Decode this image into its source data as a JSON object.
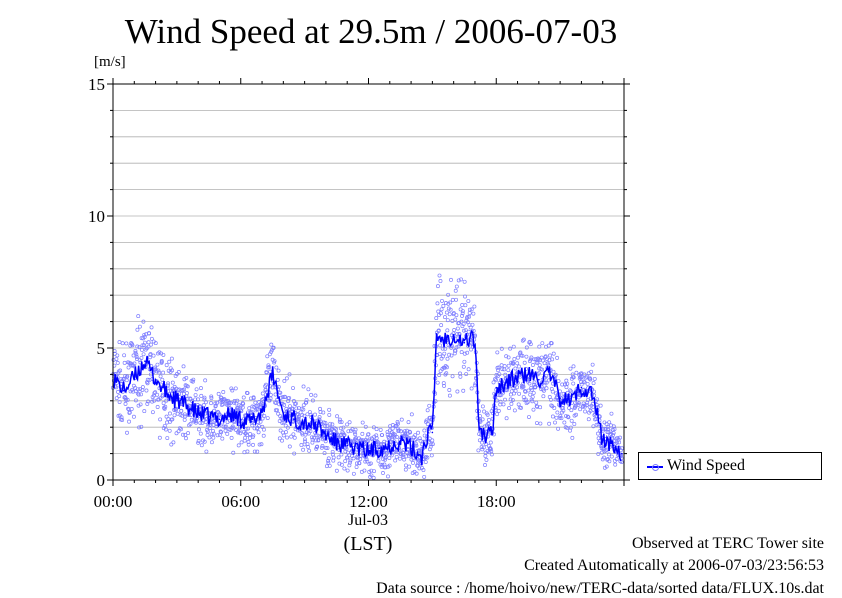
{
  "chart_data": {
    "type": "line",
    "title": "Wind Speed at 29.5m / 2006-07-03",
    "ylabel": "[m/s]",
    "xlabel_date": "Jul-03",
    "xlabel_unit": "(LST)",
    "ylim": [
      0,
      15
    ],
    "xlim_hours": [
      0,
      24
    ],
    "yticks": [
      "0",
      "5",
      "10",
      "15"
    ],
    "xticks": [
      {
        "hour": 0,
        "label": "00:00"
      },
      {
        "hour": 6,
        "label": "06:00"
      },
      {
        "hour": 12,
        "label": "12:00"
      },
      {
        "hour": 18,
        "label": "18:00"
      }
    ],
    "grid": "horizontal",
    "legend": {
      "position": "right-bottom",
      "label": "Wind Speed"
    },
    "series": [
      {
        "name": "Wind Speed",
        "style": "line with scattered 10-second samples",
        "line_color": "#0000ff",
        "point_color": "#7d7dff",
        "x": [
          0.0,
          0.5,
          1.0,
          1.5,
          2.0,
          2.5,
          3.0,
          3.5,
          4.0,
          4.5,
          5.0,
          5.5,
          6.0,
          6.5,
          7.0,
          7.5,
          8.0,
          8.5,
          9.0,
          9.5,
          10.0,
          10.5,
          11.0,
          11.5,
          12.0,
          12.5,
          13.0,
          13.5,
          14.0,
          14.5,
          14.8,
          15.0,
          15.2,
          15.5,
          16.0,
          16.5,
          16.9,
          17.0,
          17.2,
          17.5,
          17.8,
          18.0,
          18.5,
          19.0,
          19.5,
          20.0,
          20.5,
          21.0,
          21.5,
          22.0,
          22.5,
          23.0,
          23.5,
          23.9
        ],
        "y": [
          3.9,
          3.4,
          3.9,
          4.5,
          3.8,
          3.3,
          3.0,
          2.8,
          2.5,
          2.4,
          2.3,
          2.5,
          2.3,
          2.2,
          2.6,
          4.0,
          2.5,
          2.3,
          2.2,
          2.1,
          1.7,
          1.4,
          1.3,
          1.2,
          1.1,
          1.2,
          1.3,
          1.5,
          1.2,
          0.9,
          1.8,
          1.8,
          5.5,
          5.3,
          5.5,
          5.2,
          5.5,
          5.1,
          2.0,
          1.6,
          1.8,
          3.5,
          3.7,
          3.9,
          4.0,
          3.8,
          4.0,
          3.1,
          3.0,
          3.5,
          3.3,
          1.5,
          1.3,
          1.0
        ],
        "scatter_spread": [
          1.0,
          1.0,
          1.1,
          1.3,
          1.2,
          1.1,
          0.9,
          0.9,
          0.8,
          0.8,
          0.8,
          0.8,
          0.8,
          0.8,
          0.9,
          1.0,
          0.9,
          0.8,
          0.8,
          0.8,
          0.7,
          0.7,
          0.7,
          0.7,
          0.7,
          0.7,
          0.7,
          0.7,
          0.7,
          0.6,
          0.8,
          0.8,
          1.5,
          1.5,
          1.4,
          1.4,
          1.4,
          1.3,
          0.8,
          0.7,
          0.7,
          1.0,
          1.0,
          1.0,
          1.1,
          1.1,
          1.1,
          0.9,
          0.9,
          0.9,
          0.9,
          0.7,
          0.6,
          0.5
        ]
      }
    ]
  },
  "footer": {
    "line1": "Observed at TERC Tower site",
    "line2": "Created Automatically at 2006-07-03/23:56:53",
    "line3": "Data source : /home/hoivo/new/TERC-data/sorted  data/FLUX.10s.dat"
  }
}
